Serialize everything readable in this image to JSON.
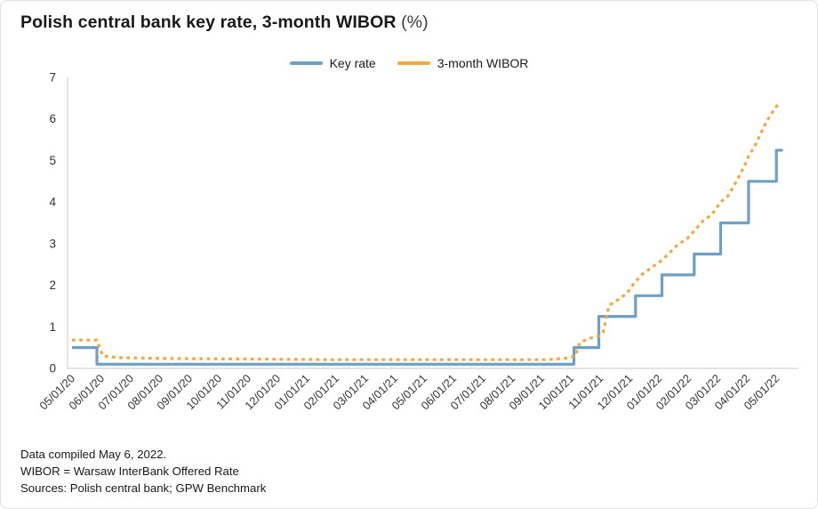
{
  "title": {
    "main": "Polish central bank key rate, 3-month WIBOR",
    "suffix": " (%)"
  },
  "legend": [
    {
      "label": "Key rate",
      "color": "#6e9fc6",
      "style": "solid"
    },
    {
      "label": "3-month WIBOR",
      "color": "#f4a73e",
      "style": "dashed"
    }
  ],
  "notes": [
    "Data compiled May 6, 2022.",
    "WIBOR = Warsaw InterBank Offered Rate",
    "Sources: Polish central bank; GPW Benchmark"
  ],
  "chart_data": {
    "type": "line",
    "title": "Polish central bank key rate, 3-month WIBOR (%)",
    "xlabel": "",
    "ylabel": "",
    "x_unit": "months since 05/01/20 (mm/dd/yy), monthly ticks",
    "x_tick_labels": [
      "05/01/20",
      "06/01/20",
      "07/01/20",
      "08/01/20",
      "09/01/20",
      "10/01/20",
      "11/01/20",
      "12/01/20",
      "01/01/21",
      "02/01/21",
      "03/01/21",
      "04/01/21",
      "05/01/21",
      "06/01/21",
      "07/01/21",
      "08/01/21",
      "09/01/21",
      "10/01/21",
      "11/01/21",
      "12/01/21",
      "01/01/22",
      "02/01/22",
      "03/01/22",
      "04/01/22",
      "05/01/22"
    ],
    "x_ticks_months": [
      0,
      1,
      2,
      3,
      4,
      5,
      6,
      7,
      8,
      9,
      10,
      11,
      12,
      13,
      14,
      15,
      16,
      17,
      18,
      19,
      20,
      21,
      22,
      23,
      24
    ],
    "xlim_months": [
      -0.15,
      24.75
    ],
    "ylim": [
      0,
      7
    ],
    "yticks": [
      0,
      1,
      2,
      3,
      4,
      5,
      6,
      7
    ],
    "grid": false,
    "legend_position": "top center",
    "axis_color": "#c8c8c8",
    "tick_label_color": "#333333",
    "series": [
      {
        "name": "Key rate",
        "color": "#6e9fc6",
        "style": "solid",
        "points": [
          [
            0,
            0.5
          ],
          [
            0.85,
            0.5
          ],
          [
            0.85,
            0.1
          ],
          [
            17.1,
            0.1
          ],
          [
            17.1,
            0.5
          ],
          [
            17.95,
            0.5
          ],
          [
            17.95,
            1.25
          ],
          [
            19.2,
            1.25
          ],
          [
            19.2,
            1.75
          ],
          [
            20.1,
            1.75
          ],
          [
            20.1,
            2.25
          ],
          [
            21.2,
            2.25
          ],
          [
            21.2,
            2.75
          ],
          [
            22.1,
            2.75
          ],
          [
            22.1,
            3.5
          ],
          [
            23.05,
            3.5
          ],
          [
            23.05,
            4.5
          ],
          [
            24.0,
            4.5
          ],
          [
            24.0,
            5.25
          ],
          [
            24.22,
            5.25
          ]
        ]
      },
      {
        "name": "3-month WIBOR",
        "color": "#f4a73e",
        "style": "dashed",
        "points": [
          [
            0,
            0.68
          ],
          [
            0.85,
            0.68
          ],
          [
            1.05,
            0.3
          ],
          [
            1.6,
            0.26
          ],
          [
            3,
            0.24
          ],
          [
            5,
            0.23
          ],
          [
            7,
            0.22
          ],
          [
            9,
            0.21
          ],
          [
            11,
            0.21
          ],
          [
            13,
            0.21
          ],
          [
            15,
            0.21
          ],
          [
            16.2,
            0.21
          ],
          [
            16.9,
            0.25
          ],
          [
            17.15,
            0.3
          ],
          [
            17.3,
            0.62
          ],
          [
            17.6,
            0.72
          ],
          [
            17.95,
            0.78
          ],
          [
            18.1,
            0.88
          ],
          [
            18.3,
            1.52
          ],
          [
            18.6,
            1.65
          ],
          [
            18.9,
            1.8
          ],
          [
            19.1,
            2.0
          ],
          [
            19.4,
            2.25
          ],
          [
            19.8,
            2.45
          ],
          [
            20.1,
            2.6
          ],
          [
            20.6,
            2.95
          ],
          [
            21.0,
            3.15
          ],
          [
            21.5,
            3.55
          ],
          [
            21.8,
            3.7
          ],
          [
            22.1,
            4.0
          ],
          [
            22.35,
            4.15
          ],
          [
            22.6,
            4.45
          ],
          [
            22.9,
            4.85
          ],
          [
            23.05,
            5.1
          ],
          [
            23.3,
            5.4
          ],
          [
            23.6,
            5.85
          ],
          [
            23.8,
            6.1
          ],
          [
            24.05,
            6.35
          ]
        ]
      }
    ]
  }
}
